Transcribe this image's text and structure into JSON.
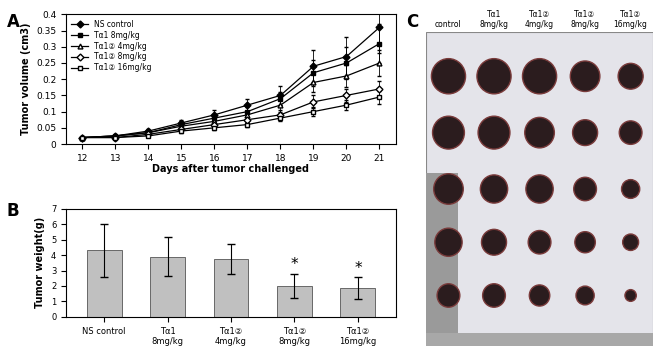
{
  "chart_data": [
    {
      "type": "line",
      "panel": "A",
      "x_label": "Days after tumor challenged",
      "y_label": "Tumor volume (cm3)",
      "x": [
        12,
        13,
        14,
        15,
        16,
        17,
        18,
        19,
        20,
        21
      ],
      "xlim": [
        11.5,
        21.5
      ],
      "xticks": [
        12,
        13,
        14,
        15,
        16,
        17,
        18,
        19,
        20,
        21
      ],
      "ylim": [
        0,
        0.4
      ],
      "yticks": [
        0,
        0.05,
        0.1,
        0.15,
        0.2,
        0.25,
        0.3,
        0.35,
        0.4
      ],
      "legend": "upper left",
      "series": [
        {
          "name": "NS control",
          "color": "#000000",
          "marker": "filled_diamond",
          "values": [
            0.02,
            0.025,
            0.04,
            0.065,
            0.09,
            0.12,
            0.15,
            0.24,
            0.27,
            0.36
          ],
          "errors": [
            0,
            0,
            0.005,
            0.01,
            0.015,
            0.02,
            0.03,
            0.05,
            0.06,
            0.08
          ]
        },
        {
          "name": "Tα1 8mg/kg",
          "color": "#000000",
          "marker": "filled_square",
          "values": [
            0.02,
            0.025,
            0.035,
            0.06,
            0.08,
            0.1,
            0.14,
            0.22,
            0.25,
            0.31
          ],
          "errors": [
            0,
            0,
            0.005,
            0.01,
            0.01,
            0.015,
            0.02,
            0.04,
            0.05,
            0.06
          ]
        },
        {
          "name": "Tα1② 4mg/kg",
          "color": "#000000",
          "marker": "open_triangle",
          "values": [
            0.02,
            0.025,
            0.035,
            0.055,
            0.07,
            0.09,
            0.12,
            0.19,
            0.21,
            0.25
          ],
          "errors": [
            0,
            0,
            0.005,
            0.008,
            0.01,
            0.012,
            0.02,
            0.03,
            0.035,
            0.04
          ]
        },
        {
          "name": "Tα1② 8mg/kg",
          "color": "#000000",
          "marker": "open_diamond",
          "values": [
            0.02,
            0.02,
            0.03,
            0.045,
            0.06,
            0.075,
            0.09,
            0.13,
            0.15,
            0.17
          ],
          "errors": [
            0,
            0,
            0.004,
            0.006,
            0.008,
            0.01,
            0.015,
            0.02,
            0.02,
            0.025
          ]
        },
        {
          "name": "Tα1② 16mg/kg",
          "color": "#000000",
          "marker": "open_square",
          "values": [
            0.02,
            0.02,
            0.025,
            0.04,
            0.05,
            0.06,
            0.08,
            0.1,
            0.12,
            0.145
          ],
          "errors": [
            0,
            0,
            0.003,
            0.005,
            0.006,
            0.008,
            0.01,
            0.015,
            0.015,
            0.02
          ]
        }
      ]
    },
    {
      "type": "bar",
      "panel": "B",
      "y_label": "Tumor weight(g)",
      "categories": [
        "NS control",
        "Tα1\n8mg/kg",
        "Tα1②\n4mg/kg",
        "Tα1②\n8mg/kg",
        "Tα1②\n16mg/kg"
      ],
      "values": [
        4.3,
        3.9,
        3.75,
        2.0,
        1.85
      ],
      "errors": [
        1.7,
        1.25,
        0.95,
        0.8,
        0.7
      ],
      "annotations": [
        null,
        null,
        null,
        "*",
        "*"
      ],
      "color": "#c0c0c0",
      "ylim": [
        0,
        7
      ],
      "yticks": [
        0,
        1,
        2,
        3,
        4,
        5,
        6,
        7
      ]
    }
  ],
  "photo": {
    "panel": "C",
    "labels": [
      "control",
      "Tα1\n8mg/kg",
      "Tα1②\n4mg/kg",
      "Tα1②\n8mg/kg",
      "Tα1②\n16mg/kg"
    ]
  }
}
